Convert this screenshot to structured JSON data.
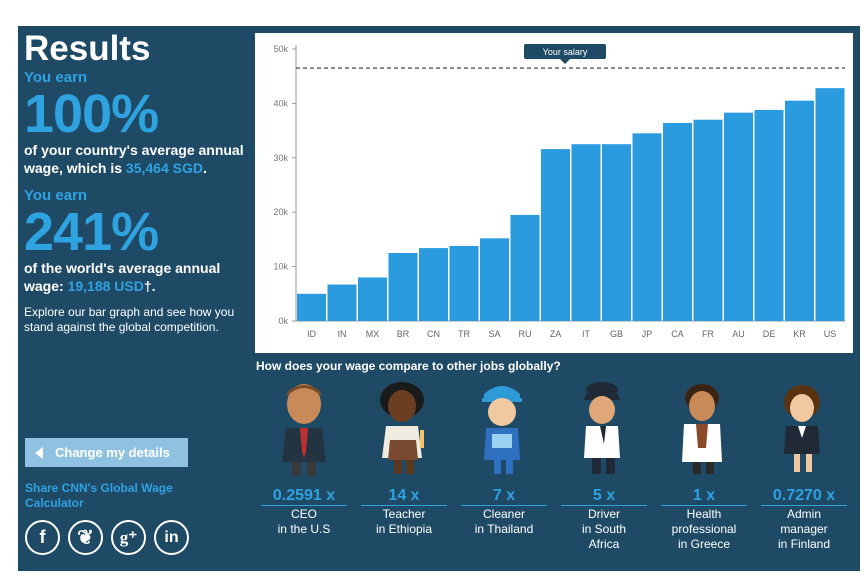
{
  "left": {
    "title": "Results",
    "earn1_label": "You earn",
    "earn1_pct": "100%",
    "earn1_desc": "of your country's average annual wage, which is ",
    "earn1_amount": "35,464 SGD",
    "earn1_end": ".",
    "earn2_label": "You earn",
    "earn2_pct": "241%",
    "earn2_desc": "of the world's average annual wage: ",
    "earn2_amount": "19,188 USD",
    "earn2_end": "†.",
    "explore": "Explore our bar graph and see how you stand against the global competition.",
    "change_btn": "Change my details",
    "share": "Share CNN's Global Wage Calculator"
  },
  "social": [
    {
      "icon": "facebook-icon",
      "glyph": "f"
    },
    {
      "icon": "twitter-icon",
      "glyph": "❦"
    },
    {
      "icon": "google-plus-icon",
      "glyph": "g⁺"
    },
    {
      "icon": "linkedin-icon",
      "glyph": "in"
    }
  ],
  "chart_data": {
    "type": "bar",
    "categories": [
      "ID",
      "IN",
      "MX",
      "BR",
      "CN",
      "TR",
      "SA",
      "RU",
      "ZA",
      "IT",
      "GB",
      "JP",
      "CA",
      "FR",
      "AU",
      "DE",
      "KR",
      "US"
    ],
    "values": [
      5000,
      6700,
      8000,
      12500,
      13400,
      13800,
      15200,
      19500,
      31600,
      32500,
      32500,
      34500,
      36400,
      37000,
      38300,
      38800,
      40500,
      42800
    ],
    "y_ticks": [
      "0k",
      "10k",
      "20k",
      "30k",
      "40k",
      "50k"
    ],
    "ylim": [
      0,
      50000
    ],
    "reference_line": {
      "label": "Your salary",
      "value": 46500
    },
    "bar_color": "#2b9be0"
  },
  "compare_title": "How does your wage compare to other jobs globally?",
  "jobs": [
    {
      "mult": "0.2591 x",
      "role_1": "CEO",
      "role_2": "in the U.S",
      "role_3": ""
    },
    {
      "mult": "14 x",
      "role_1": "Teacher",
      "role_2": "in Ethiopia",
      "role_3": ""
    },
    {
      "mult": "7 x",
      "role_1": "Cleaner",
      "role_2": "in Thailand",
      "role_3": ""
    },
    {
      "mult": "5 x",
      "role_1": "Driver",
      "role_2": "in South",
      "role_3": "Africa"
    },
    {
      "mult": "1 x",
      "role_1": "Health",
      "role_2": "professional",
      "role_3": "in Greece"
    },
    {
      "mult": "0.7270 x",
      "role_1": "Admin",
      "role_2": "manager",
      "role_3": "in Finland"
    }
  ]
}
